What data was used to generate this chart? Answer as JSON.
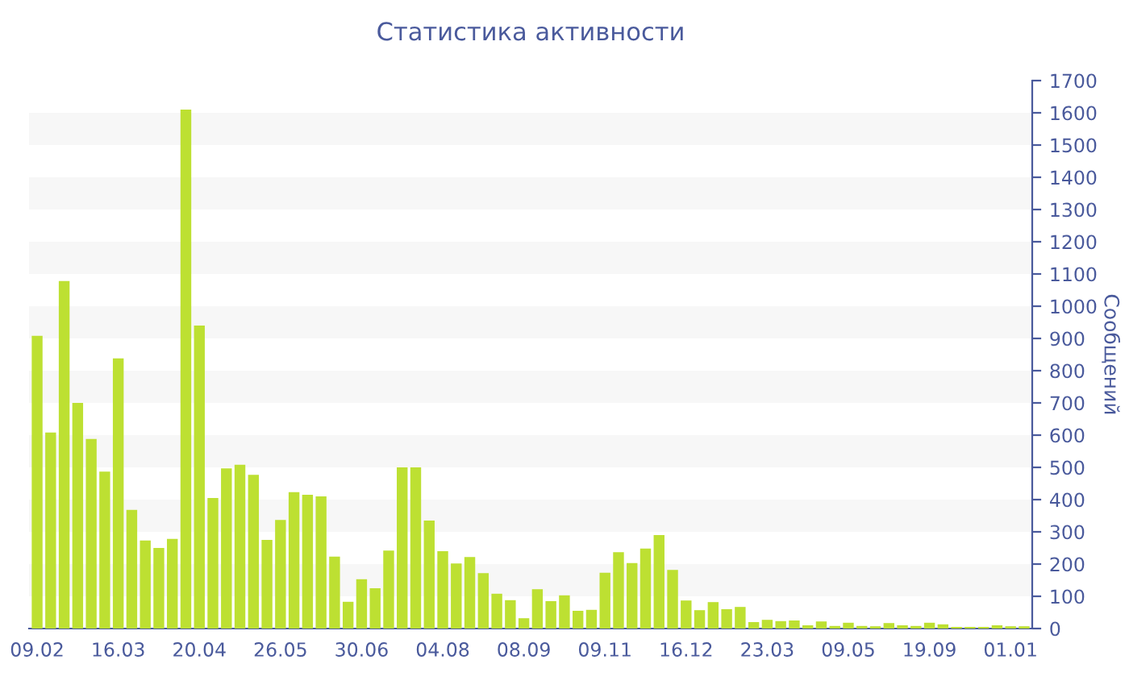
{
  "chart_data": {
    "type": "bar",
    "title": "Статистика активности",
    "ylabel": "Сообщений",
    "categories": [
      "09.02",
      null,
      null,
      null,
      null,
      null,
      "16.03",
      null,
      null,
      null,
      null,
      null,
      "20.04",
      null,
      null,
      null,
      null,
      null,
      "26.05",
      null,
      null,
      null,
      null,
      null,
      "30.06",
      null,
      null,
      null,
      null,
      null,
      "04.08",
      null,
      null,
      null,
      null,
      null,
      "08.09",
      null,
      null,
      null,
      null,
      null,
      "09.11",
      null,
      null,
      null,
      null,
      null,
      "16.12",
      null,
      null,
      null,
      null,
      null,
      "23.03",
      null,
      null,
      null,
      null,
      null,
      "09.05",
      null,
      null,
      null,
      null,
      null,
      "19.09",
      null,
      null,
      null,
      null,
      null,
      "01.01",
      null
    ],
    "values": [
      908,
      608,
      1078,
      700,
      588,
      487,
      838,
      368,
      273,
      250,
      278,
      1610,
      940,
      405,
      497,
      508,
      477,
      275,
      337,
      423,
      415,
      410,
      223,
      83,
      153,
      125,
      242,
      500,
      500,
      335,
      240,
      202,
      222,
      172,
      108,
      88,
      32,
      122,
      85,
      103,
      55,
      58,
      173,
      237,
      203,
      248,
      290,
      182,
      87,
      57,
      82,
      60,
      67,
      20,
      27,
      23,
      25,
      10,
      22,
      8,
      18,
      8,
      7,
      17,
      10,
      8,
      18,
      13,
      5,
      5,
      5,
      10,
      7,
      7
    ],
    "color": "#bde032",
    "ylim": [
      0,
      1700
    ],
    "yticks": [
      0,
      100,
      200,
      300,
      400,
      500,
      600,
      700,
      800,
      900,
      1000,
      1100,
      1200,
      1300,
      1400,
      1500,
      1600,
      1700
    ],
    "bands": [
      {
        "axis": "y",
        "from": 100,
        "to": 200,
        "color": "#f7f7f7"
      },
      {
        "axis": "y",
        "from": 300,
        "to": 400,
        "color": "#f7f7f7"
      },
      {
        "axis": "y",
        "from": 500,
        "to": 600,
        "color": "#f7f7f7"
      },
      {
        "axis": "y",
        "from": 700,
        "to": 800,
        "color": "#f7f7f7"
      },
      {
        "axis": "y",
        "from": 900,
        "to": 1000,
        "color": "#f7f7f7"
      },
      {
        "axis": "y",
        "from": 1100,
        "to": 1200,
        "color": "#f7f7f7"
      },
      {
        "axis": "y",
        "from": 1300,
        "to": 1400,
        "color": "#f7f7f7"
      },
      {
        "axis": "y",
        "from": 1500,
        "to": 1600,
        "color": "#f7f7f7"
      }
    ],
    "grid": false
  }
}
